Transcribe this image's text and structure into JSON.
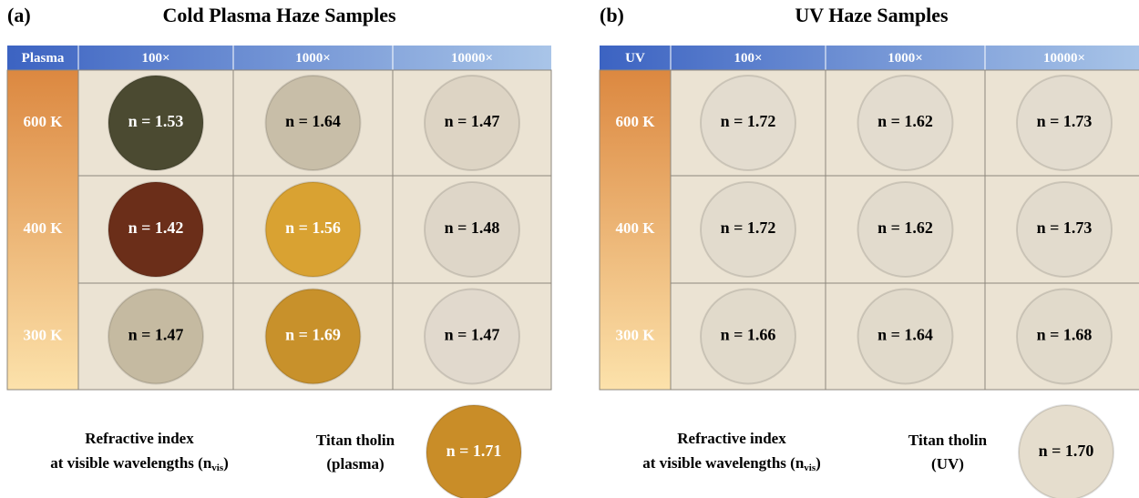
{
  "panels": [
    {
      "label": "(a)",
      "title": "Cold Plasma Haze Samples",
      "corner": "Plasma",
      "columns": [
        "100×",
        "1000×",
        "10000×"
      ],
      "rows": [
        {
          "label": "600 K",
          "cells": [
            {
              "text": "n = 1.53",
              "color": "#4b4a31",
              "text_color": "#ffffff"
            },
            {
              "text": "n = 1.64",
              "color": "#c8bea8",
              "text_color": "#000000"
            },
            {
              "text": "n = 1.47",
              "color": "#ddd4c4",
              "text_color": "#000000"
            }
          ]
        },
        {
          "label": "400 K",
          "cells": [
            {
              "text": "n = 1.42",
              "color": "#6b2e19",
              "text_color": "#ffffff"
            },
            {
              "text": "n = 1.56",
              "color": "#d9a232",
              "text_color": "#ffffff"
            },
            {
              "text": "n = 1.48",
              "color": "#ded6c8",
              "text_color": "#000000"
            }
          ]
        },
        {
          "label": "300 K",
          "cells": [
            {
              "text": "n = 1.47",
              "color": "#c5baa1",
              "text_color": "#000000"
            },
            {
              "text": "n = 1.69",
              "color": "#c8912b",
              "text_color": "#ffffff"
            },
            {
              "text": "n = 1.47",
              "color": "#e1d9cd",
              "text_color": "#000000"
            }
          ]
        }
      ],
      "footer": {
        "line1": "Refractive index",
        "line2": {
          "before": "at visible wavelengths (n",
          "sub": "vis",
          "after": ")"
        }
      },
      "tholin": {
        "lines": [
          "Titan tholin",
          "(plasma)"
        ],
        "text": "n = 1.71",
        "color": "#c98d28",
        "text_color": "#ffffff"
      }
    },
    {
      "label": "(b)",
      "title": "UV Haze Samples",
      "corner": "UV",
      "columns": [
        "100×",
        "1000×",
        "10000×"
      ],
      "rows": [
        {
          "label": "600 K",
          "cells": [
            {
              "text": "n = 1.72",
              "color": "#e3dccf",
              "text_color": "#000000"
            },
            {
              "text": "n = 1.62",
              "color": "#e3dccf",
              "text_color": "#000000"
            },
            {
              "text": "n = 1.73",
              "color": "#e3dccf",
              "text_color": "#000000"
            }
          ]
        },
        {
          "label": "400 K",
          "cells": [
            {
              "text": "n = 1.72",
              "color": "#e2dbcd",
              "text_color": "#000000"
            },
            {
              "text": "n = 1.62",
              "color": "#e2dbcd",
              "text_color": "#000000"
            },
            {
              "text": "n = 1.73",
              "color": "#e2dbcd",
              "text_color": "#000000"
            }
          ]
        },
        {
          "label": "300 K",
          "cells": [
            {
              "text": "n = 1.66",
              "color": "#e1dacb",
              "text_color": "#000000"
            },
            {
              "text": "n = 1.64",
              "color": "#e1dacb",
              "text_color": "#000000"
            },
            {
              "text": "n = 1.68",
              "color": "#e1dacb",
              "text_color": "#000000"
            }
          ]
        }
      ],
      "footer": {
        "line1": "Refractive index",
        "line2": {
          "before": "at visible wavelengths (n",
          "sub": "vis",
          "after": ")"
        }
      },
      "tholin": {
        "lines": [
          "Titan tholin",
          "(UV)"
        ],
        "text": "n = 1.70",
        "color": "#e5ddcd",
        "text_color": "#000000"
      }
    }
  ]
}
